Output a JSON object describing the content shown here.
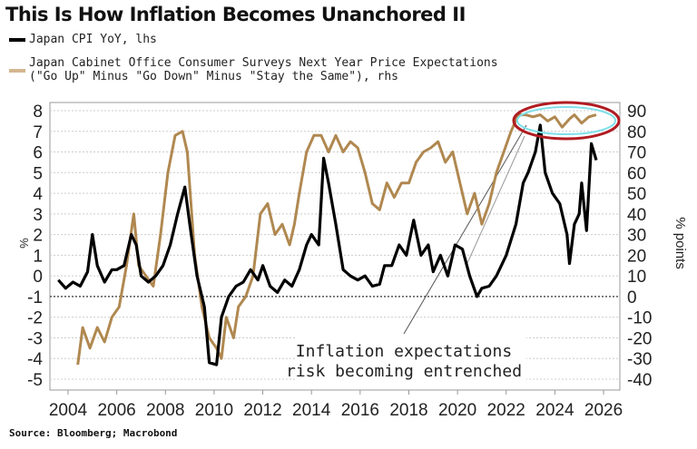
{
  "chart_data": {
    "type": "line",
    "title": "This Is How Inflation Becomes Unanchored II",
    "legend": [
      {
        "label": "Japan CPI YoY, lhs",
        "color": "#000000"
      },
      {
        "label_line1": "Japan Cabinet Office Consumer Surveys Next Year Price Expectations",
        "label_line2": "(\"Go Up\" Minus \"Go Down\" Minus \"Stay the Same\"), rhs",
        "color": "#b08850"
      }
    ],
    "ylabel_left": "%",
    "ylabel_right": "% points",
    "ylim_left": [
      -5,
      8
    ],
    "ylim_right": [
      -40,
      90
    ],
    "yticks_left": [
      8,
      7,
      6,
      5,
      4,
      3,
      2,
      1,
      0,
      -1,
      -2,
      -3,
      -4,
      -5
    ],
    "yticks_right": [
      90,
      80,
      70,
      60,
      50,
      40,
      30,
      20,
      10,
      0,
      -10,
      -20,
      -30,
      -40
    ],
    "xticks": [
      "2004",
      "2006",
      "2008",
      "2010",
      "2012",
      "2014",
      "2016",
      "2018",
      "2020",
      "2022",
      "2024",
      "2026"
    ],
    "xlim": [
      2003.3,
      2026.6
    ],
    "grid": true,
    "annotations": {
      "line1": "Inflation expectations",
      "line2": "risk becoming entrenched"
    },
    "series": [
      {
        "name": "Japan CPI YoY",
        "axis": "left",
        "color": "#000000",
        "x": [
          2003.6,
          2003.9,
          2004.2,
          2004.5,
          2004.8,
          2005.0,
          2005.2,
          2005.5,
          2005.8,
          2006.0,
          2006.3,
          2006.6,
          2006.8,
          2007.0,
          2007.3,
          2007.6,
          2007.9,
          2008.2,
          2008.5,
          2008.8,
          2009.0,
          2009.3,
          2009.6,
          2009.8,
          2010.1,
          2010.3,
          2010.6,
          2010.9,
          2011.2,
          2011.5,
          2011.8,
          2012.0,
          2012.3,
          2012.6,
          2012.9,
          2013.2,
          2013.5,
          2013.8,
          2014.0,
          2014.3,
          2014.5,
          2014.7,
          2015.0,
          2015.3,
          2015.6,
          2015.9,
          2016.2,
          2016.5,
          2016.8,
          2017.0,
          2017.3,
          2017.6,
          2017.9,
          2018.2,
          2018.5,
          2018.8,
          2019.0,
          2019.3,
          2019.6,
          2019.9,
          2020.2,
          2020.5,
          2020.8,
          2021.0,
          2021.3,
          2021.6,
          2022.0,
          2022.4,
          2022.7,
          2022.9,
          2023.2,
          2023.4,
          2023.6,
          2023.9,
          2024.2,
          2024.5,
          2024.6,
          2024.8,
          2025.0,
          2025.1,
          2025.3,
          2025.5,
          2025.7
        ],
        "values": [
          -0.2,
          -0.6,
          -0.3,
          -0.5,
          0.2,
          2.0,
          0.5,
          -0.3,
          0.3,
          0.3,
          0.5,
          2.0,
          1.5,
          0.0,
          -0.3,
          0.0,
          0.5,
          1.5,
          3.0,
          4.3,
          2.5,
          0.0,
          -1.5,
          -4.2,
          -4.3,
          -2.0,
          -1.0,
          -0.5,
          -0.3,
          0.3,
          -0.2,
          0.5,
          -0.5,
          -0.8,
          -0.2,
          -0.5,
          0.3,
          1.5,
          2.0,
          1.5,
          5.7,
          4.5,
          2.5,
          0.3,
          0.0,
          -0.2,
          0.0,
          -0.5,
          -0.4,
          0.5,
          0.5,
          1.5,
          1.0,
          2.7,
          1.0,
          1.5,
          0.2,
          1.0,
          0.0,
          1.5,
          1.3,
          0.0,
          -1.0,
          -0.6,
          -0.5,
          0.0,
          1.0,
          2.5,
          4.5,
          5.0,
          6.0,
          7.3,
          5.0,
          4.0,
          3.5,
          2.0,
          0.6,
          2.5,
          3.0,
          4.5,
          2.2,
          6.4,
          5.6
        ]
      },
      {
        "name": "Next Year Price Expectations",
        "axis": "right",
        "color": "#b08850",
        "x": [
          2004.4,
          2004.6,
          2004.9,
          2005.2,
          2005.5,
          2005.8,
          2006.1,
          2006.4,
          2006.7,
          2006.9,
          2007.2,
          2007.5,
          2007.8,
          2008.1,
          2008.4,
          2008.7,
          2008.9,
          2009.2,
          2009.5,
          2009.8,
          2010.1,
          2010.3,
          2010.5,
          2010.8,
          2011.0,
          2011.3,
          2011.6,
          2011.9,
          2012.2,
          2012.5,
          2012.8,
          2013.1,
          2013.3,
          2013.5,
          2013.8,
          2014.1,
          2014.4,
          2014.7,
          2015.0,
          2015.3,
          2015.6,
          2015.9,
          2016.2,
          2016.5,
          2016.8,
          2017.1,
          2017.4,
          2017.7,
          2018.0,
          2018.3,
          2018.6,
          2018.9,
          2019.2,
          2019.5,
          2019.8,
          2020.1,
          2020.4,
          2020.7,
          2021.0,
          2021.3,
          2021.6,
          2021.9,
          2022.2,
          2022.5,
          2022.8,
          2023.1,
          2023.4,
          2023.7,
          2024.0,
          2024.3,
          2024.6,
          2024.8,
          2025.1,
          2025.4,
          2025.7
        ],
        "values": [
          -33,
          -15,
          -25,
          -15,
          -22,
          -10,
          -5,
          15,
          40,
          15,
          10,
          5,
          30,
          60,
          78,
          80,
          70,
          20,
          -5,
          -20,
          -25,
          -30,
          -10,
          -20,
          -5,
          0,
          10,
          40,
          45,
          30,
          35,
          25,
          35,
          50,
          70,
          78,
          78,
          70,
          78,
          70,
          75,
          72,
          60,
          45,
          42,
          55,
          48,
          55,
          55,
          65,
          70,
          72,
          75,
          65,
          70,
          55,
          40,
          50,
          35,
          45,
          60,
          70,
          80,
          88,
          88,
          87,
          88,
          85,
          87,
          82,
          86,
          88,
          84,
          87,
          88
        ]
      }
    ]
  },
  "source": "Source: Bloomberg; Macrobond"
}
